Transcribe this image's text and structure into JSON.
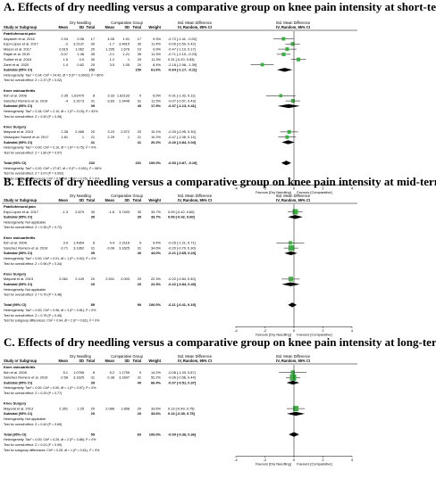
{
  "header_cols": {
    "study": "Study or Subgroup",
    "group1": "Dry Needling",
    "group2": "Comparative Group",
    "mean": "Mean",
    "sd": "SD",
    "total": "Total",
    "weight": "Weight",
    "smd_text": "Std. Mean Difference",
    "smd_text_sub": "IV, Random, 95% CI",
    "smd_plot": "Std. Mean Difference",
    "smd_plot_sub": "IV, Random, 95% CI"
  },
  "colors": {
    "study_box": "#3cb043",
    "text": "#000000",
    "title": "#000000"
  },
  "chart_data": [
    {
      "type": "forest",
      "title": "A. Effects of dry needling versus a comparative group on knee pain intensity at short-term",
      "rows": [
        {
          "kind": "group",
          "label": "Patellofemoral pain"
        },
        {
          "kind": "study",
          "label": "Abyaneh et al. 2016",
          "m1": "2.94",
          "sd1": "0.96",
          "n1": "17",
          "m2": "4.05",
          "sd2": "1.91",
          "n2": "17",
          "weight": "9.3%",
          "ci_text": "-0.72 [-1.41, -0.02]",
          "est": -0.72,
          "lo": -1.41,
          "hi": -0.02
        },
        {
          "kind": "study",
          "label": "Espí-López et al. 2017",
          "m1": "-2",
          "sd1": "3.2137",
          "n1": "30",
          "m2": "-1.7",
          "sd2": "3.4815",
          "n2": "30",
          "weight": "11.4%",
          "ci_text": "-0.09 [-0.59, 0.42]",
          "est": -0.09,
          "lo": -0.59,
          "hi": 0.42
        },
        {
          "kind": "study",
          "label": "Mason et al. 2017",
          "m1": "0.615",
          "sd1": "1.062",
          "n1": "20",
          "m2": "1.295",
          "sd2": "1.676",
          "n2": "19",
          "weight": "9.9%",
          "ci_text": "-0.47 [-1.10, 0.17]",
          "est": -0.47,
          "lo": -1.1,
          "hi": 0.17
        },
        {
          "kind": "study",
          "label": "Rajae et al. 2019",
          "m1": "-3.07",
          "sd1": "1.46",
          "n1": "35",
          "m2": "-2.1",
          "sd2": "1.21",
          "n2": "35",
          "weight": "11.3%",
          "ci_text": "-0.71 [-1.19, -0.23]",
          "est": -0.71,
          "lo": -1.19,
          "hi": -0.23
        },
        {
          "kind": "study",
          "label": "Sutlive et al. 2018",
          "m1": "1.5",
          "sd1": "0.9",
          "n1": "30",
          "m2": "1.2",
          "sd2": "1",
          "n2": "29",
          "weight": "11.3%",
          "ci_text": "0.31 [-0.20, 0.83]",
          "est": 0.31,
          "lo": -0.2,
          "hi": 0.83
        },
        {
          "kind": "study",
          "label": "Zarei et al. 2020",
          "m1": "1.4",
          "sd1": "0.82",
          "n1": "20",
          "m2": "3.5",
          "sd2": "1.05",
          "n2": "20",
          "weight": "8.4%",
          "ci_text": "-2.18 [-2.98, -1.39]",
          "est": -2.18,
          "lo": -2.98,
          "hi": -1.39
        },
        {
          "kind": "subtotal",
          "label": "Subtotal (95% CI)",
          "n1": "152",
          "n2": "150",
          "weight": "61.6%",
          "ci_text": "-0.64 [-1.17, -0.11]",
          "est": -0.64,
          "lo": -1.17,
          "hi": -0.11
        },
        {
          "kind": "note",
          "text": "Heterogeneity: Tau² = 0.34; Chi² = 24.42, df = 5 (P = 0.0002); I² = 80%"
        },
        {
          "kind": "note",
          "text": "Test for overall effect: Z = 2.37 (P = 0.02)"
        },
        {
          "kind": "blank"
        },
        {
          "kind": "group",
          "label": "Knee osteoarthritis"
        },
        {
          "kind": "study",
          "label": "Itoh et al. 2008",
          "m1": "2.35",
          "sd1": "1.61479",
          "n1": "8",
          "m2": "3.33",
          "sd2": "1.82133",
          "n2": "9",
          "weight": "6.5%",
          "ci_text": "-0.91 [-1.92, 0.11]",
          "est": -0.91,
          "lo": -1.92,
          "hi": 0.11
        },
        {
          "kind": "study",
          "label": "Sánchez Romero et al. 2019",
          "m1": "-4",
          "sd1": "2.3173",
          "n1": "31",
          "m2": "-3.83",
          "sd2": "2.3446",
          "n2": "31",
          "weight": "11.5%",
          "ci_text": "-0.07 [-0.57, 0.43]",
          "est": -0.07,
          "lo": -0.57,
          "hi": 0.43
        },
        {
          "kind": "subtotal",
          "label": "Subtotal (95% CI)",
          "n1": "39",
          "n2": "40",
          "weight": "17.9%",
          "ci_text": "-0.37 [-1.13, 0.41]",
          "est": -0.37,
          "lo": -1.13,
          "hi": 0.41
        },
        {
          "kind": "note",
          "text": "Heterogeneity: Tau² = 0.18; Chi² = 2.10, df = 1 (P = 0.15); I² = 52%"
        },
        {
          "kind": "note",
          "text": "Test for overall effect: Z = 0.92 (P = 0.36)"
        },
        {
          "kind": "blank"
        },
        {
          "kind": "group",
          "label": "Knee Surgery"
        },
        {
          "kind": "study",
          "label": "Mayoral et al. 2013",
          "m1": "2.38",
          "sd1": "2.466",
          "n1": "20",
          "m2": "3.23",
          "sd2": "2.572",
          "n2": "20",
          "weight": "10.1%",
          "ci_text": "-0.33 [-0.95, 0.30]",
          "est": -0.33,
          "lo": -0.95,
          "hi": 0.3
        },
        {
          "kind": "study",
          "label": "Velázquez Saornil et al. 2017",
          "m1": "1.81",
          "sd1": "1",
          "n1": "21",
          "m2": "2.29",
          "sd2": "1",
          "n2": "21",
          "weight": "10.2%",
          "ci_text": "-0.47 [-1.08, 0.14]",
          "est": -0.47,
          "lo": -1.08,
          "hi": 0.14
        },
        {
          "kind": "subtotal",
          "label": "Subtotal (95% CI)",
          "n1": "41",
          "n2": "41",
          "weight": "20.2%",
          "ci_text": "-0.40 [-0.84, 0.04]",
          "est": -0.4,
          "lo": -0.84,
          "hi": 0.04
        },
        {
          "kind": "note",
          "text": "Heterogeneity: Tau² = 0.00; Chi² = 0.10, df = 1 (P = 0.75); I² = 0%"
        },
        {
          "kind": "note",
          "text": "Test for overall effect: Z = 1.80 (P = 0.07)"
        },
        {
          "kind": "blank"
        },
        {
          "kind": "total",
          "label": "Total (95% CI)",
          "n1": "232",
          "n2": "231",
          "weight": "100.0%",
          "ci_text": "-0.53 [-0.87, -0.19]",
          "est": -0.53,
          "lo": -0.87,
          "hi": -0.19
        },
        {
          "kind": "note",
          "text": "Heterogeneity: Tau² = 0.20; Chi² = 27.87, df = 9 (P = 0.001); I² = 68%"
        },
        {
          "kind": "note",
          "text": "Test for overall effect: Z = 3.07 (P = 0.002)"
        },
        {
          "kind": "note",
          "text": "Test for subgroup differences: Chi² = 0.56, df = 2 (P = 0.76), I² = 0%"
        }
      ],
      "xlim": [
        -4,
        4
      ],
      "ticks": [
        "-4",
        "-2",
        "0",
        "2",
        "4"
      ],
      "favours_left": "Favours [Dry Needling]",
      "favours_right": "Favours [Comparative]"
    },
    {
      "type": "forest",
      "title": "B. Effects of dry needling versus a comparative group on knee pain intensity at mid-term",
      "rows": [
        {
          "kind": "group",
          "label": "Patellofemoral pain"
        },
        {
          "kind": "study",
          "label": "Espí-López et al. 2017",
          "m1": "-1.3",
          "sd1": "2.679",
          "n1": "30",
          "m2": "-1.6",
          "sd2": "3.7493",
          "n2": "30",
          "weight": "33.7%",
          "ci_text": "0.09 [-0.42, 0.60]",
          "est": 0.09,
          "lo": -0.42,
          "hi": 0.6
        },
        {
          "kind": "subtotal",
          "label": "Subtotal (95% CI)",
          "n1": "30",
          "n2": "30",
          "weight": "33.7%",
          "ci_text": "0.09 [-0.42, 0.60]",
          "est": 0.09,
          "lo": -0.42,
          "hi": 0.6
        },
        {
          "kind": "note",
          "text": "Heterogeneity: Not applicable"
        },
        {
          "kind": "note",
          "text": "Test for overall effect: Z = 0.35 (P = 0.72)"
        },
        {
          "kind": "blank"
        },
        {
          "kind": "group",
          "label": "Knee osteoarthritis"
        },
        {
          "kind": "study",
          "label": "Itoh et al. 2008",
          "m1": "3.9",
          "sd1": "1.4354",
          "n1": "8",
          "m2": "4.4",
          "sd2": "2.2116",
          "n2": "9",
          "weight": "9.4%",
          "ci_text": "-0.25 [-1.21, 0.71]",
          "est": -0.25,
          "lo": -1.21,
          "hi": 0.71
        },
        {
          "kind": "study",
          "label": "Sánchez Romero et al. 2019",
          "m1": "-3.71",
          "sd1": "3.1362",
          "n1": "31",
          "m2": "-3.06",
          "sd2": "3.1625",
          "n2": "31",
          "weight": "34.6%",
          "ci_text": "-0.20 [-0.70, 0.30]",
          "est": -0.2,
          "lo": -0.7,
          "hi": 0.3
        },
        {
          "kind": "subtotal",
          "label": "Subtotal (95% CI)",
          "n1": "39",
          "n2": "40",
          "weight": "44.0%",
          "ci_text": "-0.21 [-0.65, 0.23]",
          "est": -0.21,
          "lo": -0.65,
          "hi": 0.23
        },
        {
          "kind": "note",
          "text": "Heterogeneity: Tau² = 0.00; Chi² = 0.01, df = 1 (P = 0.92); I² = 0%"
        },
        {
          "kind": "note",
          "text": "Test for overall effect: Z = 0.96 (P = 0.34)"
        },
        {
          "kind": "blank"
        },
        {
          "kind": "group",
          "label": "Knee Surgery"
        },
        {
          "kind": "study",
          "label": "Mayoral et al. 2013",
          "m1": "2.061",
          "sd1": "2.149",
          "n1": "20",
          "m2": "2.531",
          "sd2": "2.003",
          "n2": "20",
          "weight": "22.3%",
          "ci_text": "-0.22 [-0.84, 0.40]",
          "est": -0.22,
          "lo": -0.84,
          "hi": 0.4
        },
        {
          "kind": "subtotal",
          "label": "Subtotal (95% CI)",
          "n1": "20",
          "n2": "20",
          "weight": "22.3%",
          "ci_text": "-0.22 [-0.84, 0.40]",
          "est": -0.22,
          "lo": -0.84,
          "hi": 0.4
        },
        {
          "kind": "note",
          "text": "Heterogeneity: Not applicable"
        },
        {
          "kind": "note",
          "text": "Test for overall effect: Z = 0.70 (P = 0.48)"
        },
        {
          "kind": "blank"
        },
        {
          "kind": "total",
          "label": "Total (95% CI)",
          "n1": "89",
          "n2": "90",
          "weight": "100.0%",
          "ci_text": "-0.11 [-0.41, 0.19]",
          "est": -0.11,
          "lo": -0.41,
          "hi": 0.19
        },
        {
          "kind": "note",
          "text": "Heterogeneity: Tau² = 0.00; Chi² = 0.96, df = 3 (P = 0.81); I² = 0%"
        },
        {
          "kind": "note",
          "text": "Test for overall effect: Z = 0.75 (P = 0.45)"
        },
        {
          "kind": "note",
          "text": "Test for subgroup differences: Chi² = 0.94, df = 2 (P = 0.62), I² = 0%"
        }
      ],
      "xlim": [
        -4,
        4
      ],
      "ticks": [
        "-4",
        "-2",
        "0",
        "2",
        "4"
      ],
      "favours_left": "Favours [Dry Needling]",
      "favours_right": "Favours [Comparative]"
    },
    {
      "type": "forest",
      "title": "C. Effects of dry needling versus a comparative group on knee pain intensity at long-term",
      "rows": [
        {
          "kind": "group",
          "label": "Knee osteoarthritis"
        },
        {
          "kind": "study",
          "label": "Itoh et al. 2008",
          "m1": "5.1",
          "sd1": "1.0765",
          "n1": "8",
          "m2": "5.2",
          "sd2": "1.1759",
          "n2": "9",
          "weight": "14.2%",
          "ci_text": "-0.08 [-1.03, 0.87]",
          "est": -0.08,
          "lo": -1.03,
          "hi": 0.87
        },
        {
          "kind": "study",
          "label": "Sánchez Romero et al. 2019",
          "m1": "-2.58",
          "sd1": "3.1625",
          "n1": "31",
          "m2": "-2.38",
          "sd2": "3.1697",
          "n2": "31",
          "weight": "52.2%",
          "ci_text": "-0.06 [-0.56, 0.44]",
          "est": -0.06,
          "lo": -0.56,
          "hi": 0.44
        },
        {
          "kind": "subtotal",
          "label": "Subtotal (95% CI)",
          "n1": "39",
          "n2": "40",
          "weight": "66.4%",
          "ci_text": "-0.07 [-0.51, 0.37]",
          "est": -0.07,
          "lo": -0.51,
          "hi": 0.37
        },
        {
          "kind": "note",
          "text": "Heterogeneity: Tau² = 0.00; Chi² = 0.00, df = 1 (P = 0.97); I² = 0%"
        },
        {
          "kind": "note",
          "text": "Test for overall effect: Z = 0.29 (P = 0.77)"
        },
        {
          "kind": "blank"
        },
        {
          "kind": "group",
          "label": "Knee Surgery"
        },
        {
          "kind": "study",
          "label": "Mayoral et al. 2013",
          "m1": "2.351",
          "sd1": "2.25",
          "n1": "20",
          "m2": "2.086",
          "sd2": "1.858",
          "n2": "20",
          "weight": "33.6%",
          "ci_text": "0.13 [-0.49, 0.75]",
          "est": 0.13,
          "lo": -0.49,
          "hi": 0.75
        },
        {
          "kind": "subtotal",
          "label": "Subtotal (95% CI)",
          "n1": "20",
          "n2": "20",
          "weight": "33.6%",
          "ci_text": "0.13 [-0.49, 0.75]",
          "est": 0.13,
          "lo": -0.49,
          "hi": 0.75
        },
        {
          "kind": "note",
          "text": "Heterogeneity: Not applicable"
        },
        {
          "kind": "note",
          "text": "Test for overall effect: Z = 0.40 (P = 0.69)"
        },
        {
          "kind": "blank"
        },
        {
          "kind": "total",
          "label": "Total (95% CI)",
          "n1": "59",
          "n2": "60",
          "weight": "100.0%",
          "ci_text": "-0.00 [-0.36, 0.36]",
          "est": -0.0,
          "lo": -0.36,
          "hi": 0.36
        },
        {
          "kind": "note",
          "text": "Heterogeneity: Tau² = 0.00; Chi² = 0.25, df = 2 (P = 0.88); I² = 0%"
        },
        {
          "kind": "note",
          "text": "Test for overall effect: Z = 0.01 (P = 0.99)"
        },
        {
          "kind": "note",
          "text": "Test for subgroup differences: Chi² = 0.25, df = 1 (P = 0.61), I² = 0%"
        }
      ],
      "xlim": [
        -4,
        4
      ],
      "ticks": [
        "-4",
        "-2",
        "0",
        "2",
        "4"
      ],
      "favours_left": "Favours [Dry Needling]",
      "favours_right": "Favours [Comparative]"
    }
  ]
}
